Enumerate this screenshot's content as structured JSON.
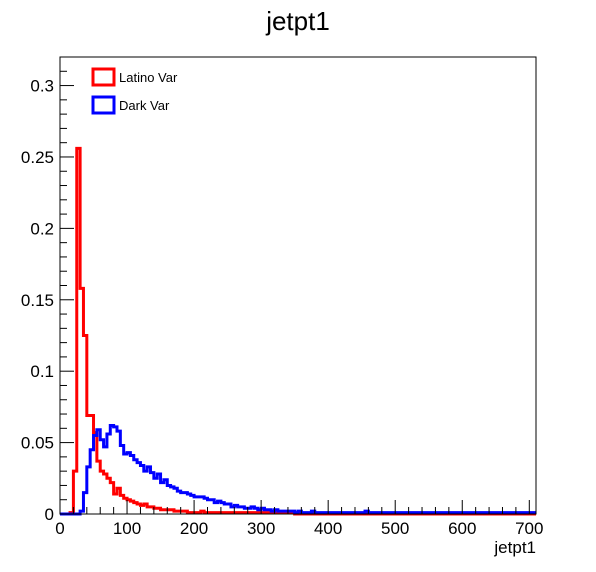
{
  "chart_data": {
    "type": "histogram",
    "title": "jetpt1",
    "xlabel": "jetpt1",
    "ylabel": "",
    "xlim": [
      0,
      710
    ],
    "ylim": [
      0,
      0.32
    ],
    "xticks": [
      0,
      100,
      200,
      300,
      400,
      500,
      600,
      700
    ],
    "yticks": [
      0,
      0.05,
      0.1,
      0.15,
      0.2,
      0.25,
      0.3
    ],
    "xtick_labels": [
      "0",
      "100",
      "200",
      "300",
      "400",
      "500",
      "600",
      "700"
    ],
    "ytick_labels": [
      "0",
      "0.05",
      "0.1",
      "0.15",
      "0.2",
      "0.25",
      "0.3"
    ],
    "bin_width": 5,
    "x_start": 0,
    "grid": false,
    "legend_position": "top-left",
    "series": [
      {
        "name": "Latino Var",
        "color": "#ff0000",
        "values": [
          0,
          0,
          0,
          0.001,
          0.03,
          0.256,
          0.158,
          0.125,
          0.069,
          0.069,
          0.057,
          0.037,
          0.03,
          0.028,
          0.025,
          0.022,
          0.014,
          0.018,
          0.013,
          0.011,
          0.01,
          0.009,
          0.008,
          0.007,
          0.006,
          0.007,
          0.005,
          0.005,
          0.004,
          0.004,
          0.003,
          0.003,
          0.003,
          0.003,
          0.002,
          0.002,
          0.002,
          0.002,
          0.001,
          0.001,
          0.001,
          0.001,
          0.002,
          0.001,
          0.001,
          0.001,
          0.001,
          0.001,
          0.001,
          0.001,
          0.001,
          0.001,
          0.001,
          0.001,
          0.001,
          0.001,
          0.001,
          0.001,
          0.001,
          0.001,
          0.001,
          0.001,
          0.001,
          0.001,
          0.001,
          0.001,
          0.001,
          0.001,
          0.001,
          0.001,
          0,
          0,
          0,
          0,
          0,
          0,
          0,
          0,
          0,
          0,
          0,
          0,
          0,
          0,
          0,
          0,
          0,
          0,
          0,
          0,
          0,
          0,
          0,
          0,
          0,
          0,
          0,
          0,
          0,
          0,
          0,
          0,
          0,
          0,
          0,
          0,
          0,
          0,
          0,
          0,
          0,
          0,
          0,
          0,
          0,
          0,
          0,
          0,
          0,
          0,
          0,
          0,
          0,
          0,
          0,
          0,
          0,
          0,
          0,
          0,
          0,
          0,
          0,
          0,
          0,
          0,
          0,
          0,
          0,
          0,
          0,
          0,
          0,
          0,
          0,
          0,
          0,
          0,
          0,
          0,
          0,
          0
        ]
      },
      {
        "name": "Dark Var",
        "color": "#0000ff",
        "values": [
          0,
          0,
          0,
          0,
          0,
          0,
          0.002,
          0.015,
          0.033,
          0.045,
          0.055,
          0.059,
          0.052,
          0.047,
          0.056,
          0.062,
          0.061,
          0.058,
          0.048,
          0.042,
          0.043,
          0.041,
          0.038,
          0.036,
          0.034,
          0.03,
          0.033,
          0.029,
          0.025,
          0.028,
          0.022,
          0.024,
          0.02,
          0.019,
          0.018,
          0.016,
          0.015,
          0.015,
          0.014,
          0.013,
          0.012,
          0.012,
          0.012,
          0.011,
          0.01,
          0.01,
          0.008,
          0.009,
          0.008,
          0.007,
          0.007,
          0.005,
          0.006,
          0.005,
          0.005,
          0.004,
          0.004,
          0.005,
          0.004,
          0.003,
          0.004,
          0.003,
          0.003,
          0.002,
          0.003,
          0.002,
          0.002,
          0.002,
          0.002,
          0.002,
          0.001,
          0.002,
          0.001,
          0.001,
          0.001,
          0.002,
          0.001,
          0.001,
          0.001,
          0.001,
          0.001,
          0.001,
          0.001,
          0.001,
          0.001,
          0.001,
          0.001,
          0.001,
          0.001,
          0.001,
          0.001,
          0.002,
          0.001,
          0.001,
          0.001,
          0.001,
          0.001,
          0.001,
          0.001,
          0.001,
          0.001,
          0.001,
          0.001,
          0.001,
          0.001,
          0.001,
          0.001,
          0.001,
          0.001,
          0.001,
          0.001,
          0.001,
          0.001,
          0.001,
          0.001,
          0.001,
          0.001,
          0.001,
          0.001,
          0.001,
          0.001,
          0.001,
          0.001,
          0.001,
          0.001,
          0.001,
          0.001,
          0.001,
          0.001,
          0.001,
          0.001,
          0.001,
          0.001,
          0.001,
          0.001,
          0.001,
          0.001,
          0.001,
          0.001,
          0.001,
          0.001,
          0.001
        ]
      }
    ]
  }
}
